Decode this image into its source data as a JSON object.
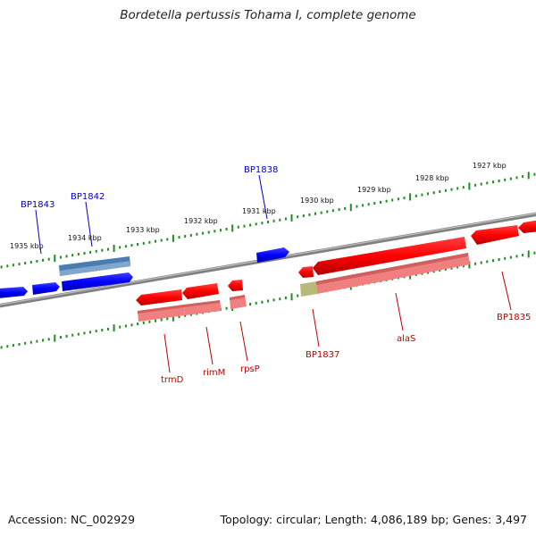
{
  "title": "Bordetella pertussis Tohama I, complete genome",
  "footer": {
    "accession": "Accession: NC_002929",
    "summary": "Topology: circular; Length: 4,086,189 bp; Genes: 3,497"
  },
  "ruler_labels": [
    "1935 kbp",
    "1934 kbp",
    "1933 kbp",
    "1932 kbp",
    "1931 kbp",
    "1930 kbp",
    "1929 kbp",
    "1928 kbp",
    "1927 kbp"
  ],
  "forward_gene_labels": [
    "BP1843",
    "BP1842",
    "BP1838"
  ],
  "reverse_gene_labels": [
    "trmD",
    "rimM",
    "rpsP",
    "BP1837",
    "alaS",
    "BP1835"
  ],
  "colors": {
    "forward_gene": "#0000ff",
    "forward_gene_shaded": "#4a7cb0",
    "reverse_gene": "#ff0000",
    "reverse_gene_shaded": "#f08080",
    "other_feature": "#b8b878",
    "backbone": "#808080",
    "ruler_tick": "#228b22"
  }
}
